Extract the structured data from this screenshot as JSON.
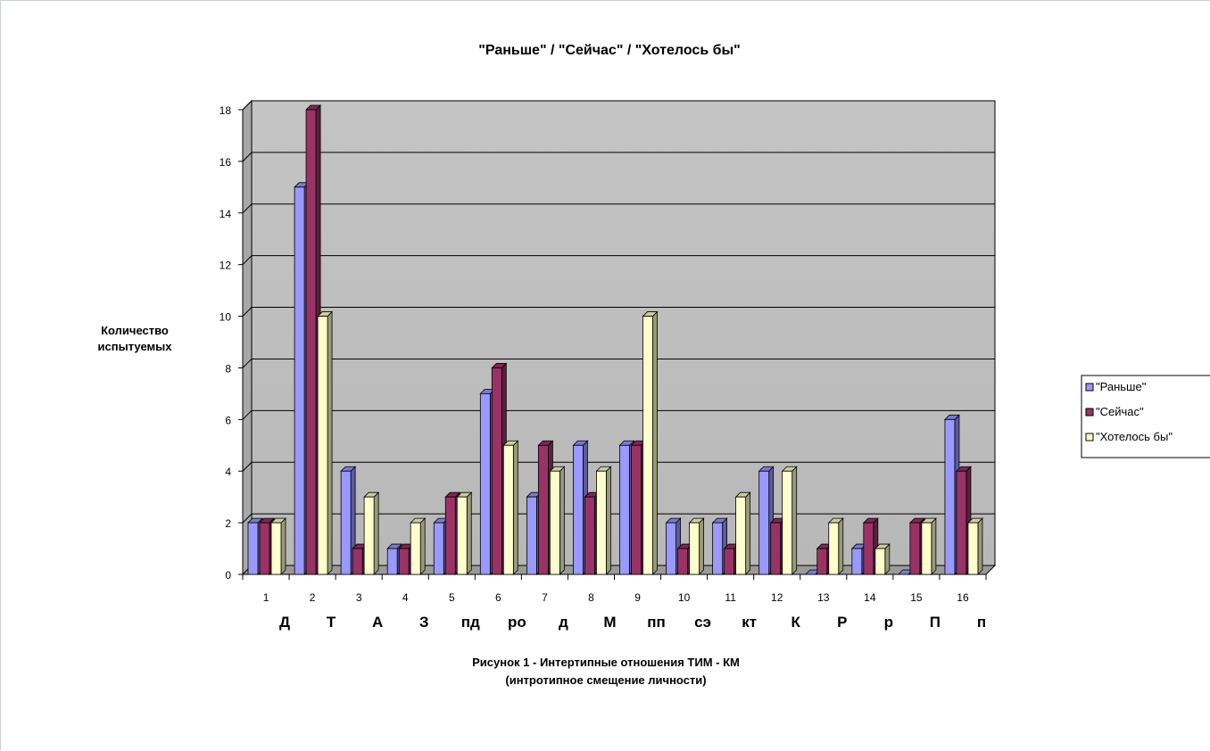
{
  "chart_data": {
    "type": "bar",
    "title": "\"Раньше\" / \"Сейчас\" / \"Хотелось бы\"",
    "ylabel_lines": [
      "Количество",
      "испытуемых"
    ],
    "xlabel": "",
    "caption_lines": [
      "Рисунок 1 - Интертипные  отношения  ТИМ - КМ",
      "(интротипное смещение  личности)"
    ],
    "categories": [
      "1",
      "2",
      "3",
      "4",
      "5",
      "6",
      "7",
      "8",
      "9",
      "10",
      "11",
      "12",
      "13",
      "14",
      "15",
      "16"
    ],
    "category_letters": [
      "Д",
      "Т",
      "А",
      "З",
      "пд",
      "ро",
      "д",
      "М",
      "пп",
      "сэ",
      "кт",
      "К",
      "Р",
      "р",
      "П",
      "п"
    ],
    "ylim": [
      0,
      18
    ],
    "yticks": [
      "0",
      "2",
      "4",
      "6",
      "8",
      "10",
      "12",
      "14",
      "16",
      "18"
    ],
    "grid": true,
    "legend_position": "right",
    "series": [
      {
        "name": "\"Раньше\"",
        "color": "#9999FF",
        "values": [
          2,
          15,
          4,
          1,
          2,
          7,
          3,
          5,
          5,
          2,
          2,
          4,
          0,
          1,
          0,
          6
        ]
      },
      {
        "name": "\"Сейчас\"",
        "color": "#993366",
        "values": [
          2,
          18,
          1,
          1,
          3,
          8,
          5,
          3,
          5,
          1,
          1,
          2,
          1,
          2,
          2,
          4
        ]
      },
      {
        "name": "\"Хотелось бы\"",
        "color": "#FFFFCC",
        "values": [
          2,
          10,
          3,
          2,
          3,
          5,
          4,
          4,
          10,
          2,
          3,
          4,
          2,
          1,
          2,
          2
        ]
      }
    ],
    "wall_color": "#C0C0C0"
  }
}
